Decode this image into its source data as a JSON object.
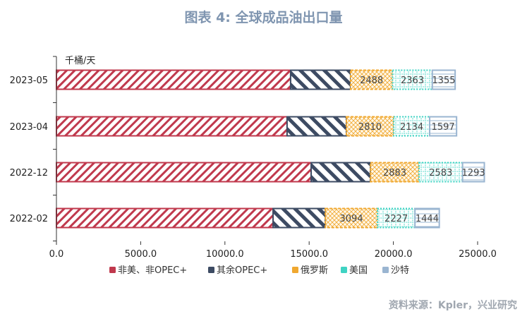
{
  "title": "图表 4:  全球成品油出口量",
  "source": "资料来源：Kpler，兴业研究",
  "chart_data": {
    "type": "bar",
    "orientation": "horizontal",
    "stacked": true,
    "unit_label": "千桶/天",
    "categories": [
      "2023-05",
      "2023-04",
      "2022-12",
      "2022-02"
    ],
    "xlim": [
      0,
      25000
    ],
    "xticks": [
      "0.0",
      "5000.0",
      "10000.0",
      "15000.0",
      "20000.0",
      "25000.0"
    ],
    "legend_position": "bottom",
    "grid": false,
    "series": [
      {
        "name": "非美、非OPEC+",
        "values": [
          13900,
          13690,
          15120,
          12860
        ],
        "color": "#c0394d",
        "labeled": false
      },
      {
        "name": "其余OPEC+",
        "values": [
          3560,
          3520,
          3520,
          3100
        ],
        "color": "#3d4b63",
        "labeled": false
      },
      {
        "name": "俄罗斯",
        "values": [
          2488,
          2810,
          2883,
          3094
        ],
        "color": "#f0a830",
        "labeled": true
      },
      {
        "name": "美国",
        "values": [
          2363,
          2134,
          2583,
          2227
        ],
        "color": "#3fd3c3",
        "labeled": true
      },
      {
        "name": "沙特",
        "values": [
          1355,
          1597,
          1293,
          1444
        ],
        "color": "#9ab5d1",
        "labeled": true
      }
    ]
  }
}
